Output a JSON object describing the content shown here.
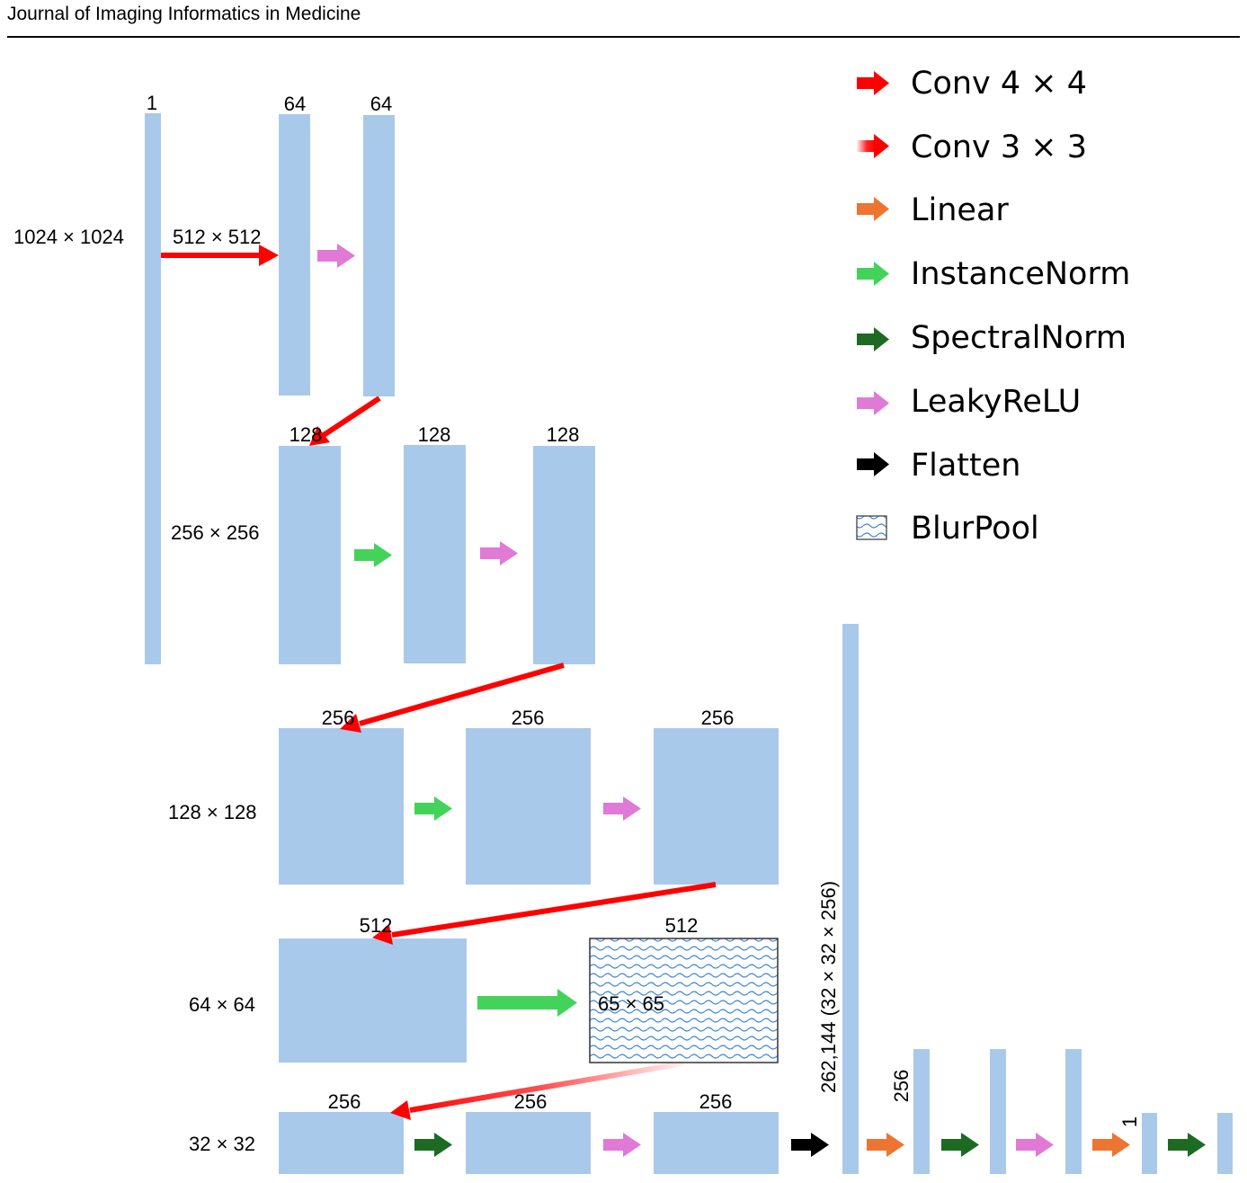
{
  "header": {
    "title": "Journal of Imaging Informatics in Medicine"
  },
  "colors": {
    "block": "#a9c9eb",
    "conv4": "#ff0000",
    "conv3": "#ff0000",
    "linear": "#ee7431",
    "instancenorm": "#43d35a",
    "spectralnorm": "#1d6b22",
    "leakyrelu": "#e07ad6",
    "flatten": "#000000",
    "blurpool": "#3d86d4"
  },
  "legend": {
    "items": [
      {
        "key": "conv4",
        "label": "Conv 4 × 4",
        "icon": "red-arrow-icon"
      },
      {
        "key": "conv3",
        "label": "Conv 3 × 3",
        "icon": "gradient-red-arrow-icon"
      },
      {
        "key": "linear",
        "label": "Linear",
        "icon": "orange-arrow-icon"
      },
      {
        "key": "instancenorm",
        "label": "InstanceNorm",
        "icon": "green-arrow-icon"
      },
      {
        "key": "spectralnorm",
        "label": "SpectralNorm",
        "icon": "dark-green-arrow-icon"
      },
      {
        "key": "leakyrelu",
        "label": "LeakyReLU",
        "icon": "pink-arrow-icon"
      },
      {
        "key": "flatten",
        "label": "Flatten",
        "icon": "black-arrow-icon"
      },
      {
        "key": "blurpool",
        "label": "BlurPool",
        "icon": "blurpool-pattern-icon"
      }
    ]
  },
  "channels": {
    "input": "1",
    "r1a": "64",
    "r1b": "64",
    "r2a": "128",
    "r2b": "128",
    "r2c": "128",
    "r3a": "256",
    "r3b": "256",
    "r3c": "256",
    "r4a": "512",
    "r4b": "512",
    "r5a": "256",
    "r5b": "256",
    "r5c": "256",
    "fc1": "256",
    "fc2": "1"
  },
  "sizes": {
    "input": "1024 × 1024",
    "s512": "512 × 512",
    "s256": "256 × 256",
    "s128": "128 × 128",
    "s64": "64 × 64",
    "s65": "65 × 65",
    "s32": "32 × 32",
    "flat": "262,144 (32 × 32 × 256)"
  }
}
